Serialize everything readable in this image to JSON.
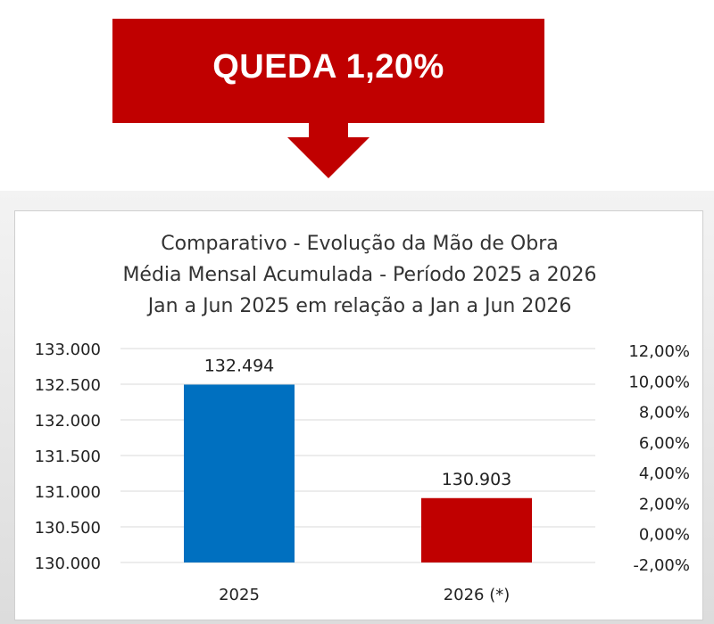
{
  "banner": {
    "text": "QUEDA 1,20%"
  },
  "colors": {
    "banner": "#c00000",
    "bar_2025": "#0070c0",
    "bar_2026": "#c00000",
    "gridline": "#d9d9d9"
  },
  "chart_data": {
    "type": "bar",
    "title_lines": [
      "Comparativo - Evolução da Mão de Obra",
      "Média Mensal Acumulada - Período 2025 a 2026",
      "Jan a Jun 2025 em relação a Jan a Jun 2026"
    ],
    "categories": [
      "2025",
      "2026 (*)"
    ],
    "values": [
      132494,
      130903
    ],
    "value_labels": [
      "132.494",
      "130.903"
    ],
    "bar_colors": [
      "#0070c0",
      "#c00000"
    ],
    "ylim": [
      130000,
      133000
    ],
    "y_ticks": [
      133000,
      132500,
      132000,
      131500,
      131000,
      130500,
      130000
    ],
    "y_tick_labels": [
      "133.000",
      "132.500",
      "132.000",
      "131.500",
      "131.000",
      "130.500",
      "130.000"
    ],
    "y2lim": [
      -2,
      12
    ],
    "y2_ticks": [
      12,
      10,
      8,
      6,
      4,
      2,
      0,
      -2
    ],
    "y2_tick_labels": [
      "12,00%",
      "10,00%",
      "8,00%",
      "6,00%",
      "4,00%",
      "2,00%",
      "0,00%",
      "-2,00%"
    ],
    "grid": true,
    "legend": "none"
  }
}
